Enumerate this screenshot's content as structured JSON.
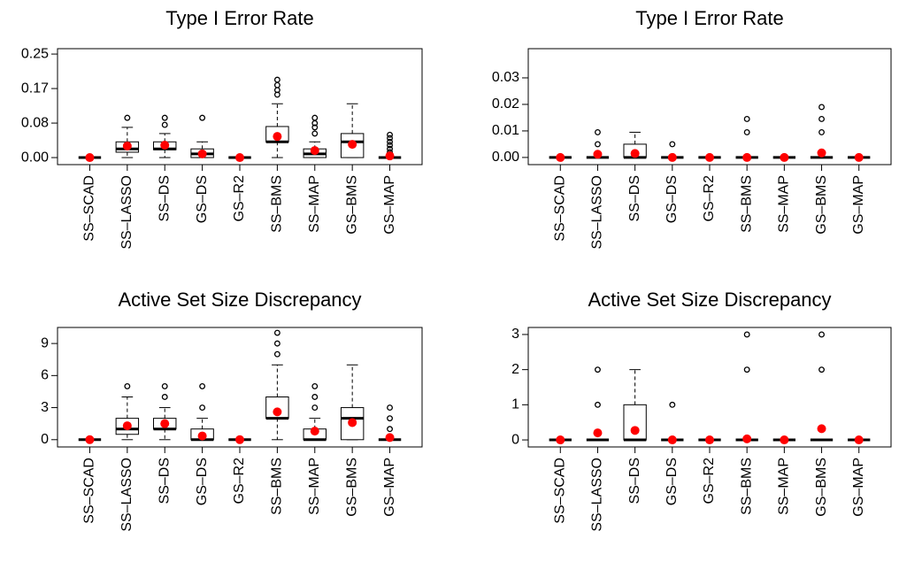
{
  "chart_data": [
    {
      "type": "box",
      "title": "Type I Error Rate",
      "categories": [
        "SS–SCAD",
        "SS–LASSO",
        "SS–DS",
        "GS–DS",
        "GS–R2",
        "SS–BMS",
        "SS–MAP",
        "GS–BMS",
        "GS–MAP"
      ],
      "ylim": [
        -0.017,
        0.263
      ],
      "yticks": [
        {
          "value": 0,
          "label": "0.00"
        },
        {
          "value": 0.0833,
          "label": "0.08"
        },
        {
          "value": 0.1667,
          "label": "0.17"
        },
        0.25
      ],
      "mean_color": "#ff0000",
      "boxes": [
        {
          "low": 0,
          "q1": 0,
          "median": 0,
          "q3": 0,
          "high": 0,
          "mean": 0,
          "outliers": []
        },
        {
          "low": 0,
          "q1": 0.013,
          "median": 0.021,
          "q3": 0.038,
          "high": 0.073,
          "mean": 0.028,
          "outliers": [
            0.096
          ]
        },
        {
          "low": 0,
          "q1": 0.019,
          "median": 0.021,
          "q3": 0.038,
          "high": 0.058,
          "mean": 0.03,
          "outliers": [
            0.079,
            0.096
          ]
        },
        {
          "low": 0,
          "q1": 0,
          "median": 0.009,
          "q3": 0.021,
          "high": 0.038,
          "mean": 0.009,
          "outliers": [
            0.096
          ]
        },
        {
          "low": 0,
          "q1": 0,
          "median": 0,
          "q3": 0,
          "high": 0,
          "mean": 0,
          "outliers": []
        },
        {
          "low": 0,
          "q1": 0.038,
          "median": 0.038,
          "q3": 0.075,
          "high": 0.13,
          "mean": 0.051,
          "outliers": [
            0.152,
            0.163,
            0.175,
            0.188
          ]
        },
        {
          "low": 0,
          "q1": 0,
          "median": 0.009,
          "q3": 0.021,
          "high": 0.038,
          "mean": 0.017,
          "outliers": [
            0.058,
            0.073,
            0.083,
            0.096
          ]
        },
        {
          "low": 0,
          "q1": 0,
          "median": 0.038,
          "q3": 0.058,
          "high": 0.13,
          "mean": 0.032,
          "outliers": []
        },
        {
          "low": 0,
          "q1": 0,
          "median": 0,
          "q3": 0,
          "high": 0,
          "mean": 0.004,
          "outliers": [
            0.013,
            0.021,
            0.03,
            0.038,
            0.047,
            0.055
          ]
        }
      ]
    },
    {
      "type": "box",
      "title": "Type I Error Rate",
      "categories": [
        "SS–SCAD",
        "SS–LASSO",
        "SS–DS",
        "GS–DS",
        "GS–R2",
        "SS–BMS",
        "SS–MAP",
        "GS–BMS",
        "GS–MAP"
      ],
      "ylim": [
        -0.0027,
        0.041
      ],
      "yticks": [
        {
          "value": 0,
          "label": "0.00"
        },
        0.01,
        0.02,
        0.03
      ],
      "mean_color": "#ff0000",
      "boxes": [
        {
          "low": 0,
          "q1": 0,
          "median": 0,
          "q3": 0,
          "high": 0,
          "mean": 0,
          "outliers": []
        },
        {
          "low": 0,
          "q1": 0,
          "median": 0,
          "q3": 0,
          "high": 0,
          "mean": 0.0012,
          "outliers": [
            0.005,
            0.0095
          ]
        },
        {
          "low": 0,
          "q1": 0,
          "median": 0,
          "q3": 0.005,
          "high": 0.0095,
          "mean": 0.0015,
          "outliers": []
        },
        {
          "low": 0,
          "q1": 0,
          "median": 0,
          "q3": 0,
          "high": 0,
          "mean": 0,
          "outliers": [
            0.005
          ]
        },
        {
          "low": 0,
          "q1": 0,
          "median": 0,
          "q3": 0,
          "high": 0,
          "mean": 0,
          "outliers": []
        },
        {
          "low": 0,
          "q1": 0,
          "median": 0,
          "q3": 0,
          "high": 0,
          "mean": 0,
          "outliers": [
            0.0095,
            0.0145
          ]
        },
        {
          "low": 0,
          "q1": 0,
          "median": 0,
          "q3": 0,
          "high": 0,
          "mean": 0,
          "outliers": []
        },
        {
          "low": 0,
          "q1": 0,
          "median": 0,
          "q3": 0,
          "high": 0,
          "mean": 0.0017,
          "outliers": [
            0.0095,
            0.0145,
            0.019
          ]
        },
        {
          "low": 0,
          "q1": 0,
          "median": 0,
          "q3": 0,
          "high": 0,
          "mean": 0,
          "outliers": []
        }
      ]
    },
    {
      "type": "box",
      "title": "Active Set Size Discrepancy",
      "categories": [
        "SS–SCAD",
        "SS–LASSO",
        "SS–DS",
        "GS–DS",
        "GS–R2",
        "SS–BMS",
        "SS–MAP",
        "GS–BMS",
        "GS–MAP"
      ],
      "ylim": [
        -0.68,
        10.5
      ],
      "yticks": [
        0,
        3,
        6,
        9
      ],
      "mean_color": "#ff0000",
      "boxes": [
        {
          "low": 0,
          "q1": 0,
          "median": 0,
          "q3": 0,
          "high": 0,
          "mean": 0,
          "outliers": []
        },
        {
          "low": 0,
          "q1": 0.5,
          "median": 1,
          "q3": 2,
          "high": 4,
          "mean": 1.3,
          "outliers": [
            5
          ]
        },
        {
          "low": 0,
          "q1": 1,
          "median": 1,
          "q3": 2,
          "high": 3,
          "mean": 1.5,
          "outliers": [
            4,
            5
          ]
        },
        {
          "low": 0,
          "q1": 0,
          "median": 0,
          "q3": 1,
          "high": 2,
          "mean": 0.35,
          "outliers": [
            3,
            5
          ]
        },
        {
          "low": 0,
          "q1": 0,
          "median": 0,
          "q3": 0,
          "high": 0,
          "mean": 0,
          "outliers": []
        },
        {
          "low": 0,
          "q1": 2,
          "median": 2,
          "q3": 4,
          "high": 7,
          "mean": 2.6,
          "outliers": [
            8,
            9,
            10
          ]
        },
        {
          "low": 0,
          "q1": 0,
          "median": 0,
          "q3": 1,
          "high": 2,
          "mean": 0.8,
          "outliers": [
            3,
            4,
            5
          ]
        },
        {
          "low": 0,
          "q1": 0,
          "median": 2,
          "q3": 3,
          "high": 7,
          "mean": 1.6,
          "outliers": []
        },
        {
          "low": 0,
          "q1": 0,
          "median": 0,
          "q3": 0,
          "high": 0,
          "mean": 0.2,
          "outliers": [
            1,
            2,
            3
          ]
        }
      ]
    },
    {
      "type": "box",
      "title": "Active Set Size Discrepancy",
      "categories": [
        "SS–SCAD",
        "SS–LASSO",
        "SS–DS",
        "GS–DS",
        "GS–R2",
        "SS–BMS",
        "SS–MAP",
        "GS–BMS",
        "GS–MAP"
      ],
      "ylim": [
        -0.2,
        3.2
      ],
      "yticks": [
        0,
        1,
        2,
        3
      ],
      "mean_color": "#ff0000",
      "boxes": [
        {
          "low": 0,
          "q1": 0,
          "median": 0,
          "q3": 0,
          "high": 0,
          "mean": 0,
          "outliers": []
        },
        {
          "low": 0,
          "q1": 0,
          "median": 0,
          "q3": 0,
          "high": 0,
          "mean": 0.2,
          "outliers": [
            1,
            2
          ]
        },
        {
          "low": 0,
          "q1": 0,
          "median": 0,
          "q3": 1,
          "high": 2,
          "mean": 0.27,
          "outliers": []
        },
        {
          "low": 0,
          "q1": 0,
          "median": 0,
          "q3": 0,
          "high": 0,
          "mean": 0,
          "outliers": [
            1
          ]
        },
        {
          "low": 0,
          "q1": 0,
          "median": 0,
          "q3": 0,
          "high": 0,
          "mean": 0,
          "outliers": []
        },
        {
          "low": 0,
          "q1": 0,
          "median": 0,
          "q3": 0,
          "high": 0,
          "mean": 0.03,
          "outliers": [
            2,
            3
          ]
        },
        {
          "low": 0,
          "q1": 0,
          "median": 0,
          "q3": 0,
          "high": 0,
          "mean": 0,
          "outliers": []
        },
        {
          "low": 0,
          "q1": 0,
          "median": 0,
          "q3": 0,
          "high": 0,
          "mean": 0.32,
          "outliers": [
            2,
            3
          ]
        },
        {
          "low": 0,
          "q1": 0,
          "median": 0,
          "q3": 0,
          "high": 0,
          "mean": 0,
          "outliers": []
        }
      ]
    }
  ]
}
